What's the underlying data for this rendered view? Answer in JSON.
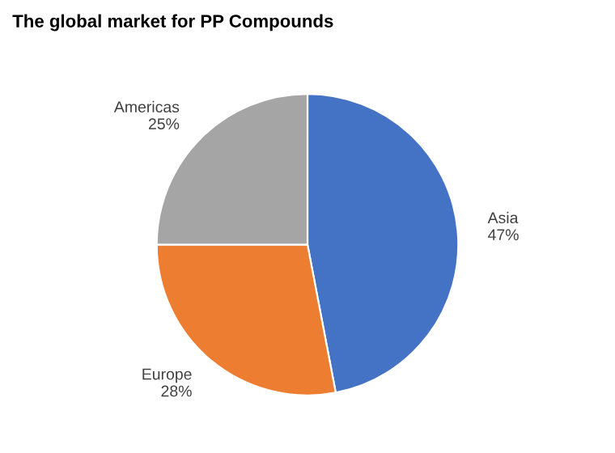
{
  "chart_data": {
    "type": "pie",
    "title": "The global market for PP Compounds",
    "categories": [
      "Asia",
      "Europe",
      "Americas"
    ],
    "values": [
      47,
      28,
      25
    ],
    "colors": [
      "#4472c4",
      "#ed7d31",
      "#a5a5a5"
    ],
    "value_labels": [
      "47%",
      "28%",
      "25%"
    ]
  }
}
